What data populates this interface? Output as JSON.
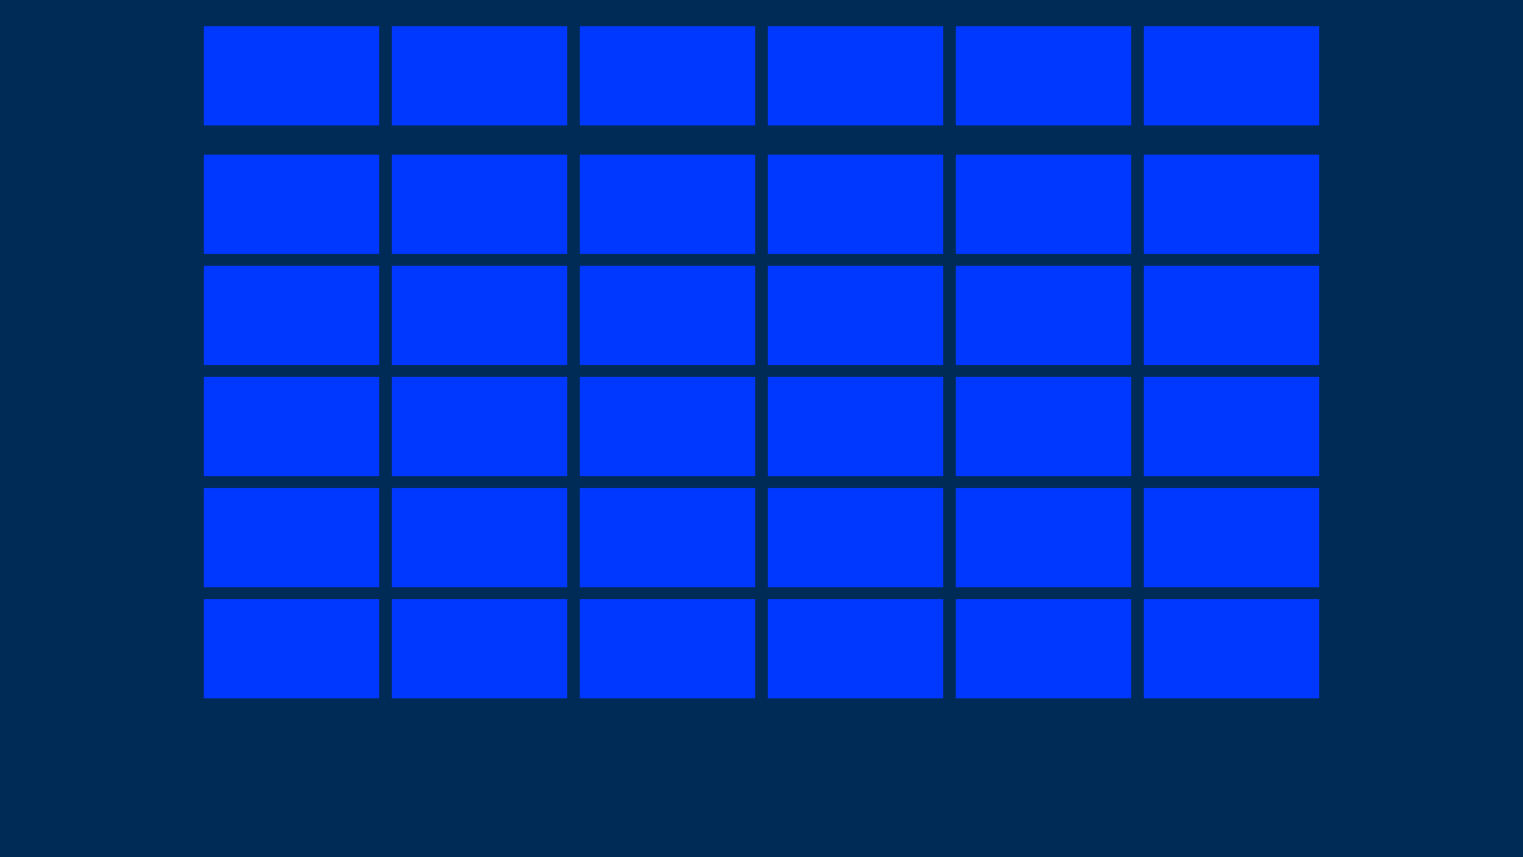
{
  "board": {
    "background_color": "#002B56",
    "tile_color": "#0038FF",
    "category_count": 6,
    "clue_rows": 5
  }
}
